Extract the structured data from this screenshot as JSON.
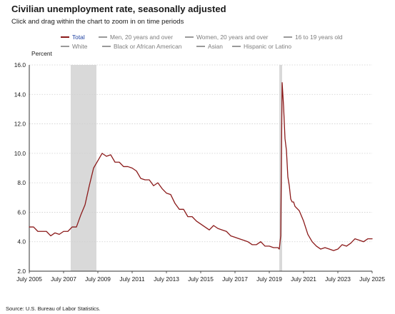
{
  "header": {
    "title": "Civilian unemployment rate, seasonally adjusted",
    "subtitle": "Click and drag within the chart to zoom in on time periods"
  },
  "legend": {
    "items": [
      {
        "label": "Total",
        "active": true
      },
      {
        "label": "Men, 20 years and over",
        "active": false
      },
      {
        "label": "Women, 20 years and over",
        "active": false
      },
      {
        "label": "16 to 19 years old",
        "active": false
      },
      {
        "label": "White",
        "active": false
      },
      {
        "label": "Black or African American",
        "active": false
      },
      {
        "label": "Asian",
        "active": false
      },
      {
        "label": "Hispanic or Latino",
        "active": false
      }
    ]
  },
  "source": "Source: U.S. Bureau of Labor Statistics.",
  "colors": {
    "series": "#8b1a1a",
    "recession": "#d9d9d9",
    "grid": "#cfcfcf",
    "inactive": "#9a9a9a",
    "active_text": "#1d3fa0"
  },
  "chart_data": {
    "type": "line",
    "ylabel": "Percent",
    "ylim": [
      2.0,
      16.0
    ],
    "yticks": [
      "2.0",
      "4.0",
      "6.0",
      "8.0",
      "10.0",
      "12.0",
      "14.0",
      "16.0"
    ],
    "xlim": [
      "2005-07",
      "2025-07"
    ],
    "xticks": [
      "July 2005",
      "July 2007",
      "July 2009",
      "July 2011",
      "July 2013",
      "July 2015",
      "July 2017",
      "July 2019",
      "July 2021",
      "July 2023",
      "July 2025"
    ],
    "grid": "horizontal dotted",
    "recessions": [
      {
        "start": "2007-12",
        "end": "2009-06"
      },
      {
        "start": "2020-02",
        "end": "2020-04"
      }
    ],
    "series": [
      {
        "name": "Total",
        "x": [
          "2005-07",
          "2005-10",
          "2006-01",
          "2006-04",
          "2006-07",
          "2006-10",
          "2007-01",
          "2007-04",
          "2007-07",
          "2007-10",
          "2008-01",
          "2008-04",
          "2008-07",
          "2008-10",
          "2009-01",
          "2009-04",
          "2009-07",
          "2009-10",
          "2010-01",
          "2010-04",
          "2010-07",
          "2010-10",
          "2011-01",
          "2011-04",
          "2011-07",
          "2011-10",
          "2012-01",
          "2012-04",
          "2012-07",
          "2012-10",
          "2013-01",
          "2013-04",
          "2013-07",
          "2013-10",
          "2014-01",
          "2014-04",
          "2014-07",
          "2014-10",
          "2015-01",
          "2015-04",
          "2015-07",
          "2015-10",
          "2016-01",
          "2016-04",
          "2016-07",
          "2016-10",
          "2017-01",
          "2017-04",
          "2017-07",
          "2017-10",
          "2018-01",
          "2018-04",
          "2018-07",
          "2018-10",
          "2019-01",
          "2019-04",
          "2019-07",
          "2019-10",
          "2020-01",
          "2020-02",
          "2020-03",
          "2020-04",
          "2020-05",
          "2020-06",
          "2020-07",
          "2020-08",
          "2020-09",
          "2020-10",
          "2020-11",
          "2020-12",
          "2021-01",
          "2021-04",
          "2021-07",
          "2021-10",
          "2022-01",
          "2022-04",
          "2022-07",
          "2022-10",
          "2023-01",
          "2023-04",
          "2023-07",
          "2023-10",
          "2024-01",
          "2024-04",
          "2024-07",
          "2024-10",
          "2025-01",
          "2025-04",
          "2025-07"
        ],
        "values": [
          5.0,
          5.0,
          4.7,
          4.7,
          4.7,
          4.4,
          4.6,
          4.5,
          4.7,
          4.7,
          5.0,
          5.0,
          5.8,
          6.5,
          7.8,
          9.0,
          9.5,
          10.0,
          9.8,
          9.9,
          9.4,
          9.4,
          9.1,
          9.1,
          9.0,
          8.8,
          8.3,
          8.2,
          8.2,
          7.8,
          8.0,
          7.6,
          7.3,
          7.2,
          6.6,
          6.2,
          6.2,
          5.7,
          5.7,
          5.4,
          5.2,
          5.0,
          4.8,
          5.1,
          4.9,
          4.8,
          4.7,
          4.4,
          4.3,
          4.2,
          4.1,
          4.0,
          3.8,
          3.8,
          4.0,
          3.7,
          3.7,
          3.6,
          3.6,
          3.5,
          4.4,
          14.8,
          13.2,
          11.0,
          10.2,
          8.4,
          7.8,
          6.9,
          6.7,
          6.7,
          6.4,
          6.1,
          5.4,
          4.5,
          4.0,
          3.7,
          3.5,
          3.6,
          3.5,
          3.4,
          3.5,
          3.8,
          3.7,
          3.9,
          4.2,
          4.1,
          4.0,
          4.2,
          4.2
        ]
      }
    ]
  }
}
